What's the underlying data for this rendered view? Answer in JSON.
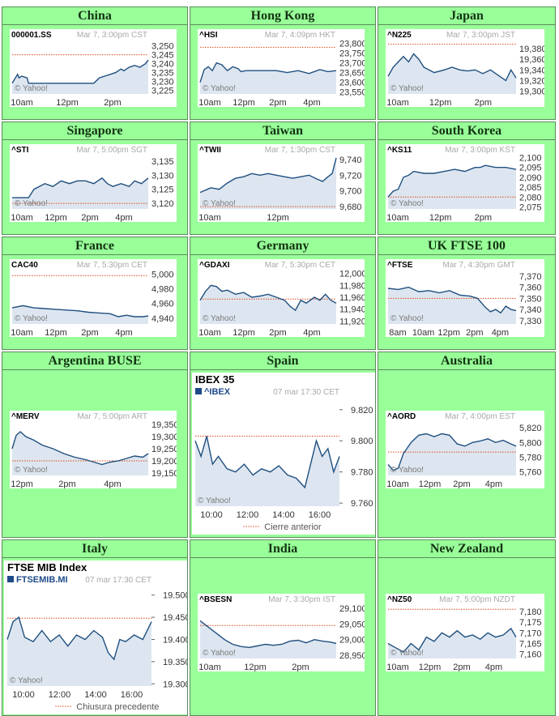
{
  "page": {
    "background": "#99ff99",
    "line_color": "#1f4f7f",
    "fill_color": "#dde6f0",
    "prev_close_color": "#e0491a"
  },
  "charts": [
    {
      "id": "china",
      "market": "China",
      "symbol": "000001.SS",
      "timestamp": "Mar 7, 3:00pm CST",
      "style": "small",
      "chart_data": {
        "type": "area",
        "x_ticks": [
          "10am",
          "12pm",
          "2pm"
        ],
        "y_ticks": [
          "3,250",
          "3,245",
          "3,240",
          "3,235",
          "3,230",
          "3,225"
        ],
        "ylim": [
          3223,
          3253
        ],
        "prev_close": 3245,
        "x": [
          0,
          4,
          5,
          7,
          11,
          12,
          18,
          24,
          28,
          31,
          36,
          40,
          44,
          52,
          60,
          64,
          68,
          72,
          76,
          80,
          82,
          86,
          90,
          94,
          98,
          100
        ],
        "values": [
          3229,
          3234,
          3232,
          3233,
          3232,
          3229,
          3229,
          3229,
          3229,
          3229,
          3229,
          3229,
          3229,
          3229,
          3229,
          3232,
          3233,
          3234,
          3235,
          3237,
          3236,
          3238,
          3239,
          3238,
          3240,
          3242
        ],
        "watermark": "© Yahoo!"
      }
    },
    {
      "id": "hongkong",
      "market": "Hong Kong",
      "symbol": "^HSI",
      "timestamp": "Mar 7, 4:09pm HKT",
      "style": "small",
      "chart_data": {
        "type": "area",
        "x_ticks": [
          "10am",
          "12pm",
          "2pm",
          "4pm"
        ],
        "y_ticks": [
          "23,800",
          "23,750",
          "23,700",
          "23,650",
          "23,600",
          "23,550"
        ],
        "ylim": [
          23540,
          23815
        ],
        "prev_close": 23780,
        "x": [
          0,
          3,
          6,
          9,
          12,
          16,
          20,
          24,
          28,
          30,
          34,
          40,
          48,
          56,
          64,
          72,
          80,
          88,
          94,
          100
        ],
        "values": [
          23600,
          23665,
          23680,
          23660,
          23700,
          23690,
          23660,
          23680,
          23670,
          23655,
          23660,
          23660,
          23660,
          23660,
          23650,
          23660,
          23645,
          23665,
          23655,
          23660
        ],
        "watermark": "© Yahoo!"
      }
    },
    {
      "id": "japan",
      "market": "Japan",
      "symbol": "^N225",
      "timestamp": "Mar 7, 3:00pm JST",
      "style": "small",
      "chart_data": {
        "type": "area",
        "x_ticks": [
          "10am",
          "12pm",
          "2pm"
        ],
        "y_ticks": [
          "19,380",
          "19,360",
          "19,340",
          "19,320",
          "19,300"
        ],
        "ylim": [
          19295,
          19395
        ],
        "prev_close": 19388,
        "x": [
          0,
          4,
          8,
          12,
          16,
          20,
          24,
          28,
          36,
          44,
          50,
          56,
          62,
          68,
          74,
          80,
          86,
          92,
          96,
          100
        ],
        "values": [
          19328,
          19345,
          19355,
          19365,
          19355,
          19370,
          19360,
          19345,
          19335,
          19340,
          19345,
          19340,
          19338,
          19340,
          19333,
          19340,
          19330,
          19320,
          19340,
          19325
        ],
        "watermark": "© Yahoo!"
      }
    },
    {
      "id": "singapore",
      "market": "Singapore",
      "symbol": "^STI",
      "timestamp": "Mar 7, 5:00pm SGT",
      "style": "small",
      "chart_data": {
        "type": "area",
        "x_ticks": [
          "10am",
          "12pm",
          "2pm",
          "4pm"
        ],
        "y_ticks": [
          "3,135",
          "3,130",
          "3,125",
          "3,120"
        ],
        "ylim": [
          3118,
          3137
        ],
        "prev_close": 3120,
        "x": [
          0,
          6,
          12,
          16,
          20,
          24,
          30,
          36,
          42,
          48,
          54,
          60,
          66,
          70,
          74,
          80,
          86,
          90,
          95,
          100
        ],
        "values": [
          3122,
          3122,
          3122,
          3125,
          3126,
          3127,
          3126,
          3128,
          3127,
          3128,
          3128,
          3127,
          3129,
          3127,
          3126,
          3127,
          3126,
          3128,
          3127,
          3129
        ],
        "watermark": "© Yahoo!"
      }
    },
    {
      "id": "taiwan",
      "market": "Taiwan",
      "symbol": "^TWII",
      "timestamp": "Mar 7, 1:30pm CST",
      "style": "small",
      "chart_data": {
        "type": "area",
        "x_ticks": [
          "10am",
          "12pm"
        ],
        "y_ticks": [
          "9,740",
          "9,720",
          "9,700",
          "9,680"
        ],
        "ylim": [
          9677,
          9745
        ],
        "prev_close": 9680,
        "x": [
          0,
          8,
          14,
          20,
          26,
          32,
          38,
          44,
          50,
          56,
          62,
          68,
          74,
          80,
          86,
          90,
          94,
          97,
          100
        ],
        "values": [
          9698,
          9704,
          9702,
          9710,
          9716,
          9718,
          9722,
          9720,
          9722,
          9720,
          9718,
          9716,
          9718,
          9720,
          9715,
          9712,
          9718,
          9722,
          9742
        ],
        "watermark": "© Yahoo!"
      }
    },
    {
      "id": "southkorea",
      "market": "South Korea",
      "symbol": "^KS11",
      "timestamp": "Mar 7, 3:00pm KST",
      "style": "small",
      "chart_data": {
        "type": "area",
        "x_ticks": [
          "10am",
          "12pm",
          "2pm"
        ],
        "y_ticks": [
          "2,100",
          "2,095",
          "2,090",
          "2,085",
          "2,080",
          "2,075"
        ],
        "ylim": [
          2074,
          2101
        ],
        "prev_close": 2080,
        "x": [
          0,
          4,
          8,
          12,
          16,
          20,
          28,
          36,
          44,
          52,
          60,
          68,
          72,
          76,
          84,
          92,
          100
        ],
        "values": [
          2080,
          2083,
          2084,
          2090,
          2091,
          2093,
          2092,
          2092,
          2093,
          2094,
          2093,
          2095,
          2095,
          2096,
          2095,
          2095,
          2094
        ],
        "watermark": "© Yahoo!"
      }
    },
    {
      "id": "france",
      "market": "France",
      "symbol": "CAC40",
      "timestamp": "Mar 7, 5:30pm CET",
      "style": "small",
      "chart_data": {
        "type": "area",
        "x_ticks": [
          "10am",
          "12pm",
          "2pm",
          "4pm"
        ],
        "y_ticks": [
          "5,000",
          "4,980",
          "4,960",
          "4,940"
        ],
        "ylim": [
          4932,
          5005
        ],
        "prev_close": 4998,
        "x": [
          0,
          8,
          16,
          24,
          32,
          40,
          48,
          56,
          64,
          72,
          78,
          84,
          90,
          96,
          100
        ],
        "values": [
          4954,
          4957,
          4954,
          4953,
          4952,
          4951,
          4950,
          4948,
          4947,
          4946,
          4942,
          4944,
          4942,
          4942,
          4943
        ],
        "watermark": "© Yahoo!"
      }
    },
    {
      "id": "germany",
      "market": "Germany",
      "symbol": "^GDAXI",
      "timestamp": "Mar 7, 5:30pm CET",
      "style": "small",
      "chart_data": {
        "type": "area",
        "x_ticks": [
          "10am",
          "12pm",
          "2pm",
          "4pm"
        ],
        "y_ticks": [
          "12,000",
          "11,980",
          "11,960",
          "11,940",
          "11,920"
        ],
        "ylim": [
          11915,
          12005
        ],
        "prev_close": 11957,
        "x": [
          0,
          4,
          8,
          12,
          16,
          20,
          26,
          32,
          38,
          44,
          50,
          56,
          62,
          66,
          70,
          74,
          78,
          84,
          88,
          92,
          96,
          100
        ],
        "values": [
          11955,
          11970,
          11980,
          11978,
          11970,
          11972,
          11965,
          11968,
          11960,
          11962,
          11965,
          11960,
          11955,
          11945,
          11938,
          11955,
          11950,
          11960,
          11955,
          11965,
          11955,
          11950
        ],
        "watermark": "© Yahoo!"
      }
    },
    {
      "id": "uk",
      "market": "UK FTSE 100",
      "symbol": "^FTSE",
      "timestamp": "Mar 7, 4:30pm GMT",
      "style": "small",
      "chart_data": {
        "type": "area",
        "x_ticks": [
          "8am",
          "10am",
          "12pm",
          "2pm",
          "4pm"
        ],
        "y_ticks": [
          "7,370",
          "7,360",
          "7,350",
          "7,340",
          "7,330"
        ],
        "ylim": [
          7327,
          7375
        ],
        "prev_close": 7350,
        "x": [
          0,
          8,
          16,
          24,
          32,
          40,
          48,
          56,
          64,
          70,
          76,
          80,
          84,
          88,
          92,
          96,
          100
        ],
        "values": [
          7359,
          7358,
          7360,
          7356,
          7357,
          7355,
          7357,
          7353,
          7352,
          7350,
          7342,
          7338,
          7340,
          7337,
          7343,
          7340,
          7339
        ],
        "watermark": "© Yahoo!"
      }
    },
    {
      "id": "argentina",
      "market": "Argentina BUSE",
      "symbol": "^MERV",
      "timestamp": "Mar 7, 5:00pm ART",
      "style": "small",
      "chart_data": {
        "type": "area",
        "x_ticks": [
          "12pm",
          "2pm",
          "4pm"
        ],
        "y_ticks": [
          "19,350",
          "19,300",
          "19,250",
          "19,200",
          "19,150"
        ],
        "ylim": [
          19140,
          19360
        ],
        "prev_close": 19200,
        "x": [
          0,
          3,
          6,
          10,
          16,
          22,
          30,
          38,
          46,
          54,
          60,
          66,
          72,
          78,
          84,
          90,
          96,
          100
        ],
        "values": [
          19250,
          19305,
          19320,
          19300,
          19285,
          19265,
          19250,
          19230,
          19215,
          19205,
          19195,
          19185,
          19195,
          19200,
          19210,
          19220,
          19215,
          19230
        ],
        "watermark": "© Yahoo!"
      }
    },
    {
      "id": "spain",
      "market": "Spain",
      "symbol": "^IBEX",
      "title": "IBEX 35",
      "timestamp": "07 mar 17:30 CET",
      "legend": "Cierre anterior",
      "style": "large",
      "chart_data": {
        "type": "area",
        "x_ticks": [
          "10:00",
          "12:00",
          "14:00",
          "16:00"
        ],
        "y_ticks": [
          "9.820",
          "9.800",
          "9.780",
          "9.760"
        ],
        "ylim": [
          9758,
          9823
        ],
        "prev_close": 9803,
        "x": [
          0,
          4,
          8,
          12,
          16,
          22,
          28,
          34,
          40,
          46,
          52,
          58,
          64,
          70,
          76,
          80,
          84,
          88,
          92,
          96,
          100
        ],
        "values": [
          9800,
          9790,
          9803,
          9785,
          9790,
          9782,
          9780,
          9785,
          9778,
          9782,
          9780,
          9784,
          9778,
          9776,
          9770,
          9785,
          9800,
          9790,
          9795,
          9780,
          9790
        ],
        "watermark": "© Yahoo!"
      }
    },
    {
      "id": "australia",
      "market": "Australia",
      "symbol": "^AORD",
      "timestamp": "Mar 7, 4:00pm EST",
      "style": "small",
      "chart_data": {
        "type": "area",
        "x_ticks": [
          "10am",
          "12pm",
          "2pm",
          "4pm"
        ],
        "y_ticks": [
          "5,820",
          "5,800",
          "5,780",
          "5,760"
        ],
        "ylim": [
          5755,
          5828
        ],
        "prev_close": 5787,
        "x": [
          0,
          4,
          8,
          12,
          18,
          24,
          30,
          36,
          42,
          48,
          54,
          60,
          66,
          72,
          78,
          84,
          90,
          96,
          100
        ],
        "values": [
          5770,
          5762,
          5765,
          5785,
          5800,
          5810,
          5812,
          5808,
          5812,
          5810,
          5798,
          5795,
          5800,
          5802,
          5805,
          5800,
          5803,
          5798,
          5795
        ],
        "watermark": "© Yahoo!"
      }
    },
    {
      "id": "italy",
      "market": "Italy",
      "symbol": "FTSEMIB.MI",
      "title": "FTSE MIB Index",
      "timestamp": "07 mar 17:30 CET",
      "legend": "Chiusura precedente",
      "style": "large",
      "chart_data": {
        "type": "area",
        "x_ticks": [
          "10:00",
          "12:00",
          "14:00",
          "16:00"
        ],
        "y_ticks": [
          "19.500",
          "19.450",
          "19.400",
          "19.350",
          "19.300"
        ],
        "ylim": [
          19295,
          19505
        ],
        "prev_close": 19448,
        "x": [
          0,
          4,
          8,
          12,
          18,
          24,
          30,
          36,
          42,
          48,
          54,
          60,
          66,
          70,
          74,
          78,
          82,
          88,
          94,
          100
        ],
        "values": [
          19400,
          19440,
          19450,
          19405,
          19395,
          19420,
          19395,
          19410,
          19385,
          19410,
          19400,
          19420,
          19405,
          19370,
          19355,
          19400,
          19395,
          19410,
          19400,
          19440
        ],
        "watermark": "© Yahoo!"
      }
    },
    {
      "id": "india",
      "market": "India",
      "symbol": "^BSESN",
      "timestamp": "Mar 7, 3:30pm IST",
      "style": "small",
      "chart_data": {
        "type": "area",
        "x_ticks": [
          "10am",
          "12pm",
          "2pm"
        ],
        "y_ticks": [
          "29,100",
          "29,050",
          "29,000",
          "28,950"
        ],
        "ylim": [
          28940,
          29110
        ],
        "prev_close": 29045,
        "x": [
          0,
          6,
          12,
          18,
          24,
          30,
          36,
          42,
          48,
          54,
          60,
          66,
          72,
          78,
          84,
          90,
          96,
          100
        ],
        "values": [
          29060,
          29040,
          29020,
          29000,
          28985,
          28978,
          28975,
          28980,
          28985,
          28982,
          28985,
          28995,
          28998,
          28990,
          29000,
          28995,
          28992,
          28988
        ],
        "watermark": "© Yahoo!"
      }
    },
    {
      "id": "newzealand",
      "market": "New Zealand",
      "symbol": "^NZ50",
      "timestamp": "Mar 7, 5:00pm NZDT",
      "style": "small",
      "chart_data": {
        "type": "area",
        "x_ticks": [
          "10am",
          "12pm",
          "2pm",
          "4pm"
        ],
        "y_ticks": [
          "7,180",
          "7,175",
          "7,170",
          "7,165",
          "7,160"
        ],
        "ylim": [
          7158,
          7183
        ],
        "prev_close": 7181,
        "x": [
          0,
          6,
          12,
          18,
          24,
          30,
          36,
          42,
          48,
          54,
          60,
          66,
          72,
          78,
          84,
          90,
          96,
          100
        ],
        "values": [
          7165,
          7163,
          7161,
          7165,
          7162,
          7168,
          7166,
          7170,
          7168,
          7171,
          7168,
          7169,
          7167,
          7170,
          7168,
          7169,
          7172,
          7168
        ],
        "watermark": "© Yahoo!"
      }
    }
  ]
}
